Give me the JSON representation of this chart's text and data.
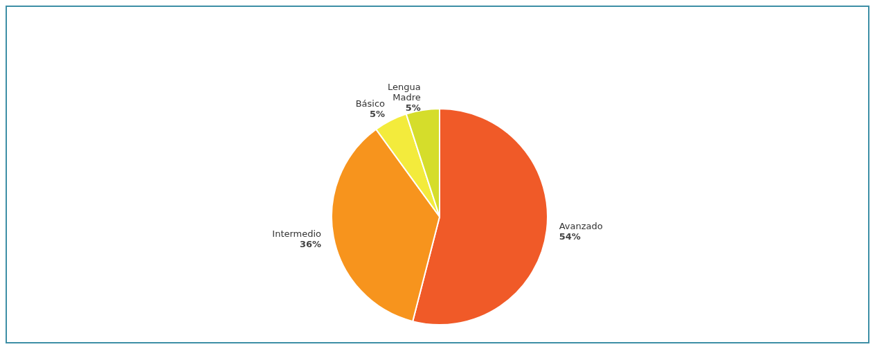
{
  "chart_data": {
    "type": "pie",
    "categories": [
      "Avanzado",
      "Intermedio",
      "Básico",
      "Lengua Madre"
    ],
    "values": [
      54,
      36,
      5,
      5
    ],
    "colors": [
      "#f05a28",
      "#f7941d",
      "#f3eb3c",
      "#d5dd2b"
    ],
    "value_labels": [
      "54%",
      "36%",
      "5%",
      "5%"
    ]
  }
}
